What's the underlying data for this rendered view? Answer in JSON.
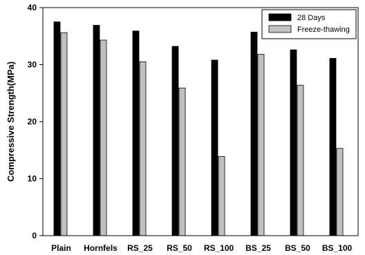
{
  "chart_data": {
    "type": "bar",
    "categories": [
      "Plain",
      "Hornfels",
      "RS_25",
      "RS_50",
      "RS_100",
      "BS_25",
      "BS_50",
      "BS_100"
    ],
    "series": [
      {
        "name": "28 Days",
        "values": [
          37.5,
          36.9,
          35.9,
          33.2,
          30.8,
          35.7,
          32.6,
          31.1
        ],
        "color": "#000000"
      },
      {
        "name": "Freeze-thawing",
        "values": [
          35.6,
          34.3,
          30.5,
          25.9,
          13.9,
          31.8,
          26.4,
          15.3
        ],
        "color": "#c0c0c0"
      }
    ],
    "title": "",
    "xlabel": "",
    "ylabel": "Compressive Strength(MPa)",
    "ylim": [
      0,
      40
    ],
    "yticks": [
      0,
      10,
      20,
      30,
      40
    ],
    "grid": false,
    "legend_position": "top-right"
  }
}
